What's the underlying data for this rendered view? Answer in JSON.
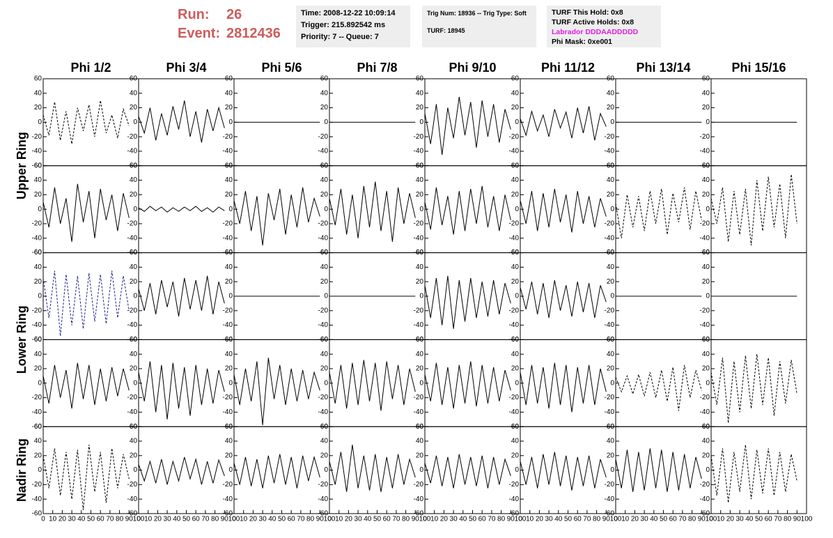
{
  "header": {
    "run_label": "Run:",
    "run": "26",
    "event_label": "Event:",
    "event": "2812436",
    "box1": [
      "Time: 2008-12-22 10:09:14",
      "Trigger: 215.892542 ms",
      "Priority: 7 -- Queue: 7"
    ],
    "box2": [
      "Trig Num: 18936 -- Trig Type: Soft",
      "TURF: 18945"
    ],
    "box3": [
      "TURF This Hold: 0x8",
      "TURF Active Holds: 0x8",
      "Labrador DDDAADDDDD",
      "Phi Mask: 0xe001"
    ]
  },
  "chart_data": {
    "type": "waveform-grid",
    "columns": [
      "Phi 1/2",
      "Phi 3/4",
      "Phi 5/6",
      "Phi 7/8",
      "Phi 9/10",
      "Phi 11/12",
      "Phi 13/14",
      "Phi 15/16"
    ],
    "row_labels": [
      "Upper Ring",
      "Lower Ring",
      "Nadir Ring"
    ],
    "xlim": [
      0,
      100
    ],
    "xticks": [
      0,
      10,
      20,
      30,
      40,
      50,
      60,
      70,
      80,
      90,
      100
    ],
    "ylim": [
      -60,
      60
    ],
    "yticks": [
      -60,
      -40,
      -20,
      0,
      20,
      40,
      60
    ],
    "x": [
      0,
      6,
      12,
      18,
      24,
      30,
      36,
      42,
      48,
      54,
      60,
      66,
      72,
      78,
      84,
      90
    ],
    "panels": [
      [
        {
          "color": "#000000",
          "dashed": true,
          "values": [
            10,
            -18,
            28,
            -25,
            15,
            -30,
            20,
            -12,
            24,
            -20,
            30,
            -15,
            10,
            -22,
            18,
            -5
          ]
        },
        {
          "color": "#000000",
          "dashed": false,
          "values": [
            8,
            -15,
            20,
            -25,
            12,
            -18,
            22,
            -10,
            30,
            -20,
            15,
            -28,
            18,
            -12,
            20,
            -8
          ]
        },
        {
          "color": "#000000",
          "dashed": false,
          "values": [
            0,
            0,
            0,
            0,
            0,
            0,
            0,
            0,
            0,
            0,
            0,
            0,
            0,
            0,
            0,
            0
          ]
        },
        {
          "color": "#000000",
          "dashed": false,
          "values": [
            0,
            0,
            0,
            0,
            0,
            0,
            0,
            0,
            0,
            0,
            0,
            0,
            0,
            0,
            0,
            0
          ]
        },
        {
          "color": "#000000",
          "dashed": false,
          "values": [
            12,
            -30,
            25,
            -45,
            20,
            -22,
            35,
            -18,
            28,
            -35,
            30,
            -20,
            25,
            -28,
            18,
            -10
          ]
        },
        {
          "color": "#000000",
          "dashed": false,
          "values": [
            5,
            -18,
            15,
            -12,
            10,
            -20,
            18,
            -8,
            14,
            -22,
            20,
            -15,
            22,
            -25,
            12,
            -6
          ]
        },
        {
          "color": "#000000",
          "dashed": false,
          "values": [
            0,
            0,
            0,
            0,
            0,
            0,
            0,
            0,
            0,
            0,
            0,
            0,
            0,
            0,
            0,
            0
          ]
        },
        {
          "color": "#000000",
          "dashed": false,
          "values": [
            0,
            0,
            0,
            0,
            0,
            0,
            0,
            0,
            0,
            0,
            0,
            0,
            0,
            0,
            0,
            0
          ]
        }
      ],
      [
        {
          "color": "#000000",
          "dashed": false,
          "values": [
            10,
            -25,
            30,
            -20,
            15,
            -45,
            35,
            -18,
            25,
            -40,
            28,
            -15,
            20,
            -30,
            22,
            -12
          ]
        },
        {
          "color": "#000000",
          "dashed": false,
          "values": [
            2,
            -3,
            4,
            -2,
            3,
            -4,
            2,
            -3,
            3,
            -2,
            4,
            -3,
            2,
            -4,
            3,
            -2
          ]
        },
        {
          "color": "#000000",
          "dashed": false,
          "values": [
            12,
            -20,
            25,
            -30,
            18,
            -50,
            22,
            -15,
            28,
            -35,
            20,
            -25,
            30,
            -18,
            15,
            -10
          ]
        },
        {
          "color": "#000000",
          "dashed": false,
          "values": [
            15,
            -22,
            28,
            -35,
            20,
            -40,
            32,
            -25,
            38,
            -30,
            25,
            -45,
            30,
            -20,
            22,
            -12
          ]
        },
        {
          "color": "#000000",
          "dashed": false,
          "values": [
            10,
            -28,
            30,
            -22,
            18,
            -35,
            25,
            -30,
            28,
            -20,
            32,
            -25,
            18,
            -30,
            20,
            -15
          ]
        },
        {
          "color": "#000000",
          "dashed": false,
          "values": [
            12,
            -20,
            25,
            -30,
            22,
            -25,
            28,
            -18,
            20,
            -32,
            25,
            -20,
            18,
            -25,
            15,
            -10
          ]
        },
        {
          "color": "#000000",
          "dashed": true,
          "values": [
            8,
            -40,
            20,
            -25,
            18,
            -30,
            25,
            -20,
            28,
            -35,
            22,
            -18,
            30,
            -28,
            25,
            -15
          ]
        },
        {
          "color": "#000000",
          "dashed": true,
          "values": [
            15,
            -20,
            30,
            -45,
            25,
            -35,
            28,
            -50,
            40,
            -30,
            45,
            -25,
            35,
            -40,
            48,
            -20
          ]
        }
      ],
      [
        {
          "color": "#1a1a8c",
          "dashed": true,
          "values": [
            25,
            -30,
            35,
            -55,
            30,
            -40,
            28,
            -45,
            32,
            -35,
            30,
            -38,
            35,
            -30,
            28,
            -20
          ]
        },
        {
          "color": "#000000",
          "dashed": false,
          "values": [
            10,
            -20,
            18,
            -25,
            22,
            -15,
            20,
            -28,
            25,
            -18,
            22,
            -20,
            28,
            -25,
            20,
            -10
          ]
        },
        {
          "color": "#000000",
          "dashed": false,
          "values": [
            0,
            0,
            0,
            0,
            0,
            0,
            0,
            0,
            0,
            0,
            0,
            0,
            0,
            0,
            0,
            0
          ]
        },
        {
          "color": "#000000",
          "dashed": false,
          "values": [
            0,
            0,
            0,
            0,
            0,
            0,
            0,
            0,
            0,
            0,
            0,
            0,
            0,
            0,
            0,
            0
          ]
        },
        {
          "color": "#000000",
          "dashed": false,
          "values": [
            15,
            -30,
            25,
            -40,
            28,
            -45,
            22,
            -35,
            25,
            -30,
            20,
            -28,
            22,
            -25,
            18,
            -10
          ]
        },
        {
          "color": "#000000",
          "dashed": false,
          "values": [
            12,
            -18,
            20,
            -25,
            18,
            -30,
            22,
            -20,
            15,
            -28,
            20,
            -22,
            18,
            -30,
            15,
            -8
          ]
        },
        {
          "color": "#000000",
          "dashed": false,
          "values": [
            0,
            0,
            0,
            0,
            0,
            0,
            0,
            0,
            0,
            0,
            0,
            0,
            0,
            0,
            0,
            0
          ]
        },
        {
          "color": "#000000",
          "dashed": false,
          "values": [
            0,
            0,
            0,
            0,
            0,
            0,
            0,
            0,
            0,
            0,
            0,
            0,
            0,
            0,
            0,
            0
          ]
        }
      ],
      [
        {
          "color": "#000000",
          "dashed": false,
          "values": [
            10,
            -28,
            25,
            -20,
            18,
            -35,
            28,
            -22,
            25,
            -30,
            20,
            -25,
            22,
            -18,
            20,
            -10
          ]
        },
        {
          "color": "#000000",
          "dashed": false,
          "values": [
            15,
            -25,
            30,
            -40,
            25,
            -50,
            28,
            -35,
            22,
            -45,
            25,
            -30,
            20,
            -28,
            18,
            -12
          ]
        },
        {
          "color": "#000000",
          "dashed": false,
          "values": [
            12,
            -30,
            20,
            -25,
            30,
            -58,
            35,
            -22,
            25,
            -30,
            20,
            -25,
            18,
            -22,
            15,
            -10
          ]
        },
        {
          "color": "#000000",
          "dashed": false,
          "values": [
            15,
            -28,
            25,
            -35,
            28,
            -30,
            32,
            -25,
            28,
            -38,
            30,
            -22,
            25,
            -30,
            20,
            -12
          ]
        },
        {
          "color": "#000000",
          "dashed": false,
          "values": [
            12,
            -25,
            28,
            -30,
            22,
            -35,
            25,
            -28,
            30,
            -32,
            25,
            -28,
            22,
            -25,
            18,
            -10
          ]
        },
        {
          "color": "#000000",
          "dashed": false,
          "values": [
            15,
            -30,
            25,
            -28,
            22,
            -35,
            28,
            -30,
            25,
            -40,
            22,
            -28,
            25,
            -30,
            20,
            -12
          ]
        },
        {
          "color": "#000000",
          "dashed": true,
          "values": [
            8,
            -12,
            10,
            -15,
            12,
            -18,
            15,
            -20,
            18,
            -25,
            22,
            -38,
            25,
            -20,
            18,
            -10
          ]
        },
        {
          "color": "#000000",
          "dashed": true,
          "values": [
            15,
            -30,
            35,
            -55,
            30,
            -40,
            38,
            -35,
            40,
            -30,
            35,
            -45,
            30,
            -28,
            32,
            -15
          ]
        }
      ],
      [
        {
          "color": "#000000",
          "dashed": true,
          "values": [
            20,
            -25,
            30,
            -35,
            25,
            -40,
            28,
            -55,
            35,
            -30,
            25,
            -45,
            30,
            -25,
            22,
            -12
          ]
        },
        {
          "color": "#000000",
          "dashed": false,
          "values": [
            8,
            -15,
            12,
            -18,
            15,
            -20,
            12,
            -15,
            18,
            -12,
            15,
            -20,
            12,
            -18,
            14,
            -8
          ]
        },
        {
          "color": "#000000",
          "dashed": false,
          "values": [
            10,
            -20,
            18,
            -22,
            15,
            -25,
            20,
            -18,
            22,
            -20,
            18,
            -25,
            20,
            -15,
            18,
            -10
          ]
        },
        {
          "color": "#000000",
          "dashed": false,
          "values": [
            12,
            -20,
            25,
            -30,
            35,
            -25,
            20,
            -28,
            22,
            -30,
            18,
            -25,
            22,
            -20,
            15,
            -10
          ]
        },
        {
          "color": "#000000",
          "dashed": false,
          "values": [
            10,
            -18,
            20,
            -22,
            18,
            -25,
            22,
            -20,
            18,
            -22,
            20,
            -25,
            18,
            -20,
            15,
            -8
          ]
        },
        {
          "color": "#000000",
          "dashed": false,
          "values": [
            12,
            -20,
            18,
            -25,
            22,
            -20,
            25,
            -22,
            20,
            -28,
            18,
            -22,
            20,
            -25,
            15,
            -10
          ]
        },
        {
          "color": "#000000",
          "dashed": false,
          "values": [
            15,
            -25,
            28,
            -30,
            25,
            -28,
            30,
            -25,
            28,
            -30,
            25,
            -28,
            22,
            -25,
            18,
            -12
          ]
        },
        {
          "color": "#000000",
          "dashed": true,
          "values": [
            20,
            -35,
            30,
            -45,
            25,
            -30,
            35,
            -40,
            28,
            -32,
            30,
            -35,
            25,
            -30,
            22,
            -15
          ]
        }
      ]
    ]
  }
}
